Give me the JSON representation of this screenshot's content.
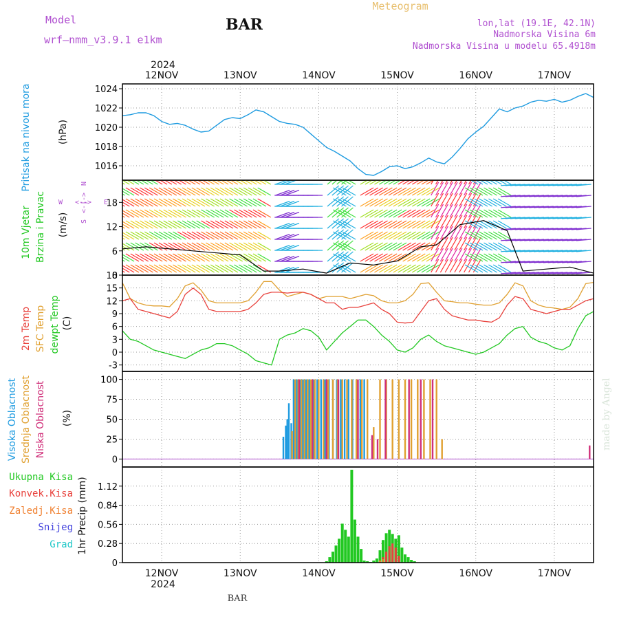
{
  "header": {
    "model_label": "Model",
    "model_name": "wrf–nmm_v3.9.1  e1km",
    "station": "BAR",
    "meteogram": "Meteogram",
    "coords": "lon,lat (19.1E, 42.1N)",
    "elevation": "Nadmorska Visina 6m",
    "model_elevation": "Nadmorska Visina u modelu 65.4918m",
    "footer_station": "BAR",
    "watermark": "made by Angel"
  },
  "colors": {
    "pressure": "#1e9be0",
    "t2m": "#e8413c",
    "tsfc": "#e0a030",
    "dewpt": "#22c822",
    "high_cloud": "#1e9be0",
    "mid_cloud": "#e0a030",
    "low_cloud": "#d0307a",
    "total_precip": "#22c822",
    "conv_precip": "#e8413c",
    "frz_precip": "#f08030",
    "snow": "#4444dd",
    "hail": "#20c8c8",
    "purple_text": "#b050d0"
  },
  "chart_data": [
    {
      "type": "line",
      "panel": "pressure",
      "ylabel_left": "Pritisak na nivou mora",
      "ylabel_unit": "(hPa)",
      "x_days": [
        "12NOV",
        "13NOV",
        "14NOV",
        "15NOV",
        "16NOV",
        "17NOV"
      ],
      "year_label": "2024",
      "x_range_days": [
        11.5,
        17.5
      ],
      "yticks": [
        1016,
        1018,
        1020,
        1022,
        1024
      ],
      "ylim": [
        1014.5,
        1024.5
      ],
      "x": [
        11.5,
        11.6,
        11.7,
        11.8,
        11.9,
        12.0,
        12.1,
        12.2,
        12.3,
        12.4,
        12.5,
        12.6,
        12.7,
        12.8,
        12.9,
        13.0,
        13.1,
        13.2,
        13.3,
        13.4,
        13.5,
        13.6,
        13.7,
        13.8,
        13.9,
        14.0,
        14.1,
        14.2,
        14.3,
        14.4,
        14.5,
        14.6,
        14.7,
        14.8,
        14.9,
        15.0,
        15.1,
        15.2,
        15.3,
        15.4,
        15.5,
        15.6,
        15.7,
        15.8,
        15.9,
        16.0,
        16.1,
        16.2,
        16.3,
        16.4,
        16.5,
        16.6,
        16.7,
        16.8,
        16.9,
        17.0,
        17.1,
        17.2,
        17.3,
        17.4,
        17.5
      ],
      "values": [
        1021.2,
        1021.3,
        1021.5,
        1021.5,
        1021.2,
        1020.6,
        1020.3,
        1020.4,
        1020.2,
        1019.8,
        1019.5,
        1019.6,
        1020.2,
        1020.8,
        1021.0,
        1020.9,
        1021.3,
        1021.8,
        1021.6,
        1021.1,
        1020.6,
        1020.4,
        1020.3,
        1020.0,
        1019.3,
        1018.6,
        1017.9,
        1017.5,
        1017.0,
        1016.5,
        1015.7,
        1015.1,
        1015.0,
        1015.4,
        1015.9,
        1016.0,
        1015.7,
        1015.9,
        1016.3,
        1016.8,
        1016.4,
        1016.2,
        1016.9,
        1017.8,
        1018.8,
        1019.5,
        1020.1,
        1021.0,
        1021.9,
        1021.6,
        1022.0,
        1022.2,
        1022.6,
        1022.8,
        1022.7,
        1022.9,
        1022.6,
        1022.8,
        1023.2,
        1023.5,
        1023.1
      ]
    },
    {
      "type": "wind-barbs",
      "panel": "wind",
      "ylabel_left_1": "10m Vjetar",
      "ylabel_left_2": "Brzina i Pravac",
      "ylabel_unit": "(m/s)",
      "compass": [
        "N",
        "W",
        "E",
        "S"
      ],
      "yticks": [
        0,
        6,
        12,
        18
      ],
      "ylim": [
        0,
        23.5
      ],
      "speed_x": [
        11.5,
        11.8,
        12.1,
        12.4,
        12.7,
        13.0,
        13.3,
        13.5,
        13.8,
        14.1,
        14.4,
        14.7,
        15.0,
        15.3,
        15.5,
        15.8,
        16.1,
        16.4,
        16.6,
        16.9,
        17.2,
        17.5
      ],
      "speed": [
        6.5,
        7.0,
        6.5,
        6.0,
        5.5,
        5.0,
        1.0,
        1.0,
        1.5,
        0.5,
        3.0,
        2.5,
        3.5,
        7.0,
        7.5,
        12.5,
        13.5,
        11.0,
        1.0,
        1.5,
        2.0,
        0.5
      ]
    },
    {
      "type": "line",
      "panel": "temperature",
      "ylabel_left_1": "2m Temp",
      "ylabel_left_2": "SFC Temp",
      "ylabel_left_3": "dewpt Temp",
      "ylabel_unit": "(C)",
      "yticks": [
        -3,
        0,
        3,
        6,
        9,
        12,
        15,
        18
      ],
      "ylim": [
        -4.5,
        18
      ],
      "x": [
        11.5,
        11.6,
        11.7,
        11.8,
        11.9,
        12.0,
        12.1,
        12.2,
        12.3,
        12.4,
        12.5,
        12.6,
        12.7,
        12.8,
        12.9,
        13.0,
        13.1,
        13.2,
        13.3,
        13.4,
        13.5,
        13.6,
        13.7,
        13.8,
        13.9,
        14.0,
        14.1,
        14.2,
        14.3,
        14.4,
        14.5,
        14.6,
        14.7,
        14.8,
        14.9,
        15.0,
        15.1,
        15.2,
        15.3,
        15.4,
        15.5,
        15.6,
        15.7,
        15.8,
        15.9,
        16.0,
        16.1,
        16.2,
        16.3,
        16.4,
        16.5,
        16.6,
        16.7,
        16.8,
        16.9,
        17.0,
        17.1,
        17.2,
        17.3,
        17.4,
        17.5
      ],
      "series": [
        {
          "name": "SFC Temp",
          "values": [
            16.2,
            12.5,
            11.5,
            11.0,
            10.8,
            10.8,
            10.6,
            12.5,
            15.5,
            16.2,
            14.5,
            12.0,
            11.5,
            11.5,
            11.5,
            11.5,
            12.0,
            14.0,
            16.5,
            16.5,
            14.5,
            13.0,
            13.5,
            14.0,
            13.5,
            12.5,
            13.0,
            13.0,
            13.0,
            12.5,
            13.0,
            13.5,
            13.2,
            12.0,
            11.5,
            11.5,
            12.0,
            13.5,
            16.0,
            16.2,
            14.0,
            12.0,
            11.8,
            11.5,
            11.5,
            11.2,
            11.0,
            11.0,
            11.5,
            13.5,
            16.2,
            15.5,
            12.0,
            11.0,
            10.5,
            10.3,
            10.0,
            10.5,
            12.5,
            16.0,
            16.3
          ]
        },
        {
          "name": "2m Temp",
          "values": [
            12.0,
            12.5,
            10.0,
            9.5,
            9.0,
            8.5,
            8.0,
            9.5,
            13.5,
            15.0,
            13.5,
            10.0,
            9.5,
            9.5,
            9.5,
            9.5,
            10.0,
            11.5,
            13.5,
            14.0,
            14.0,
            13.8,
            14.0,
            14.0,
            13.5,
            12.5,
            11.5,
            11.5,
            10.0,
            10.5,
            10.5,
            11.0,
            11.5,
            10.0,
            9.0,
            7.0,
            6.8,
            7.0,
            9.5,
            12.0,
            12.5,
            10.0,
            8.5,
            8.0,
            7.5,
            7.5,
            7.2,
            7.0,
            8.0,
            11.0,
            13.0,
            12.5,
            10.0,
            9.5,
            9.0,
            9.5,
            10.0,
            10.0,
            11.0,
            12.0,
            12.5
          ]
        },
        {
          "name": "dewpt Temp",
          "values": [
            5.0,
            3.0,
            2.5,
            1.5,
            0.5,
            0.0,
            -0.5,
            -1.0,
            -1.5,
            -0.5,
            0.5,
            1.0,
            2.0,
            2.0,
            1.5,
            0.5,
            -0.5,
            -2.0,
            -2.5,
            -3.0,
            3.0,
            4.0,
            4.5,
            5.5,
            5.0,
            3.5,
            0.5,
            2.5,
            4.5,
            6.0,
            7.5,
            7.5,
            6.0,
            4.0,
            2.5,
            0.5,
            0.0,
            1.0,
            3.0,
            4.0,
            2.5,
            1.5,
            1.0,
            0.5,
            0.0,
            -0.5,
            0.0,
            1.0,
            2.0,
            4.0,
            5.5,
            6.0,
            3.5,
            2.5,
            2.0,
            1.0,
            0.5,
            1.5,
            5.5,
            8.5,
            9.5
          ]
        }
      ]
    },
    {
      "type": "bar",
      "panel": "clouds",
      "ylabel_left_1": "Visoka Oblacnost",
      "ylabel_left_2": "Srednja Oblacnost",
      "ylabel_left_3": "Niska Oblacnost",
      "ylabel_unit": "(%)",
      "yticks": [
        0,
        25,
        50,
        75,
        100
      ],
      "ylim": [
        -10,
        110
      ],
      "series": [
        {
          "name": "Visoka Oblacnost",
          "x": [
            13.55,
            13.58,
            13.6,
            13.62,
            13.65,
            13.68,
            13.72,
            13.76,
            13.8,
            13.84,
            13.88,
            13.93,
            13.98,
            14.03,
            14.08,
            14.13,
            14.18,
            14.23,
            14.28,
            14.33,
            14.38,
            14.43,
            14.48,
            14.53,
            14.58
          ],
          "values": [
            28,
            42,
            50,
            70,
            45,
            100,
            100,
            100,
            100,
            100,
            100,
            100,
            100,
            100,
            100,
            100,
            100,
            100,
            100,
            100,
            100,
            100,
            100,
            100,
            100
          ]
        },
        {
          "name": "Srednja Oblacnost",
          "x": [
            13.66,
            13.7,
            13.74,
            13.78,
            13.82,
            13.86,
            13.9,
            13.95,
            14.0,
            14.06,
            14.12,
            14.18,
            14.24,
            14.3,
            14.36,
            14.42,
            14.48,
            14.55,
            14.62,
            14.7,
            14.78,
            14.86,
            14.94,
            15.02,
            15.1,
            15.18,
            15.26,
            15.34,
            15.42,
            15.5,
            15.57
          ],
          "values": [
            35,
            100,
            100,
            100,
            100,
            100,
            100,
            100,
            100,
            100,
            100,
            100,
            100,
            100,
            100,
            100,
            100,
            100,
            100,
            40,
            100,
            100,
            100,
            100,
            100,
            100,
            100,
            100,
            100,
            100,
            25
          ]
        },
        {
          "name": "Niska Oblacnost",
          "x": [
            13.75,
            13.92,
            14.1,
            14.25,
            14.5,
            14.68,
            14.75,
            14.85,
            15.15,
            15.3,
            15.45,
            17.45
          ],
          "values": [
            100,
            100,
            100,
            100,
            100,
            30,
            25,
            100,
            100,
            100,
            100,
            17
          ]
        }
      ]
    },
    {
      "type": "bar",
      "panel": "precip",
      "ylabel_unit": "1hr Precip (mm)",
      "legend": [
        "Ukupna Kisa",
        "Konvek.Kisa",
        "Zaledj.Kisa",
        "Snijeg",
        "Grad"
      ],
      "yticks": [
        0,
        0.28,
        0.56,
        0.84,
        1.12
      ],
      "ytick_labels": [
        "0",
        "0.28",
        "0.56",
        "0.84",
        "1.12"
      ],
      "ylim": [
        0,
        1.4
      ],
      "series": [
        {
          "name": "Ukupna Kisa",
          "x": [
            14.1,
            14.14,
            14.18,
            14.22,
            14.26,
            14.3,
            14.34,
            14.38,
            14.42,
            14.46,
            14.5,
            14.54,
            14.58,
            14.62,
            14.66,
            14.7,
            14.74,
            14.78,
            14.82,
            14.86,
            14.9,
            14.94,
            14.98,
            15.02,
            15.06,
            15.1,
            15.14,
            15.18,
            15.22
          ],
          "values": [
            0.02,
            0.08,
            0.16,
            0.25,
            0.35,
            0.57,
            0.48,
            0.38,
            1.36,
            0.63,
            0.38,
            0.2,
            0.03,
            0.02,
            0.01,
            0.03,
            0.06,
            0.18,
            0.33,
            0.43,
            0.48,
            0.42,
            0.35,
            0.4,
            0.22,
            0.12,
            0.08,
            0.04,
            0.02
          ]
        },
        {
          "name": "Konvek.Kisa",
          "x": [
            14.82,
            14.86,
            14.9,
            14.94,
            14.98,
            15.02
          ],
          "values": [
            0.08,
            0.16,
            0.24,
            0.28,
            0.22,
            0.1
          ]
        },
        {
          "name": "Zaledj.Kisa",
          "x": [
            14.78,
            14.82
          ],
          "values": [
            0.03,
            0.05
          ]
        }
      ]
    }
  ]
}
